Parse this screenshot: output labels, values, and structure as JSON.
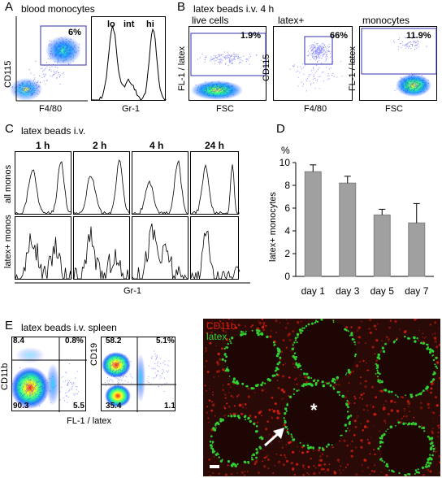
{
  "panel_labels": {
    "a": "A",
    "b": "B",
    "c": "C",
    "d": "D",
    "e": "E"
  },
  "panel_a": {
    "title": "blood monocytes",
    "dot": {
      "ylabel": "CD115",
      "xlabel": "F4/80",
      "gate_pct": "6%"
    },
    "hist": {
      "xlabel": "Gr-1",
      "lo": "lo",
      "int": "int",
      "hi": "hi"
    }
  },
  "panel_b": {
    "title": "latex beads i.v. 4 h",
    "plot1": {
      "subtitle": "live cells",
      "ylabel": "FL-1 / latex",
      "xlabel": "FSC",
      "pct": "1.9%"
    },
    "plot2": {
      "subtitle": "latex+",
      "ylabel": "CD115",
      "xlabel": "F4/80",
      "pct": "66%"
    },
    "plot3": {
      "subtitle": "monocytes",
      "ylabel": "FL-1 / latex",
      "xlabel": "FSC",
      "pct": "11.9%"
    }
  },
  "panel_c": {
    "title": "latex beads i.v.",
    "times": [
      "1 h",
      "2 h",
      "4 h",
      "24 h"
    ],
    "row_labels": [
      "all monos",
      "latex+ monos"
    ],
    "xlabel": "Gr-1"
  },
  "panel_d": {
    "chart_data": {
      "type": "bar",
      "categories": [
        "day 1",
        "day 3",
        "day 5",
        "day 7"
      ],
      "values": [
        9.2,
        8.2,
        5.4,
        4.7
      ],
      "errors": [
        0.6,
        0.6,
        0.5,
        1.7
      ],
      "ylabel": "latex+ monocytes",
      "unit": "%",
      "ylim": [
        0,
        10
      ],
      "yticks": [
        0,
        2,
        4,
        6,
        8,
        10
      ],
      "bar_color": "#a0a0a0"
    }
  },
  "panel_e": {
    "title": "latex beads i.v. spleen",
    "plot1": {
      "ylabel": "CD11b",
      "q_tl": "8.4",
      "q_tr": "0.8%",
      "q_bl": "90.3",
      "q_br": "5.5"
    },
    "plot2": {
      "ylabel": "CD19",
      "q_tl": "58.2",
      "q_tr": "5.1%",
      "q_bl": "35.4",
      "q_br": "1.1"
    },
    "xlabel": "FL-1 / latex",
    "micro": {
      "label_red": "CD11b",
      "label_green": "latex",
      "star": "*",
      "red_color": "#e02010",
      "green_color": "#30d030"
    }
  }
}
